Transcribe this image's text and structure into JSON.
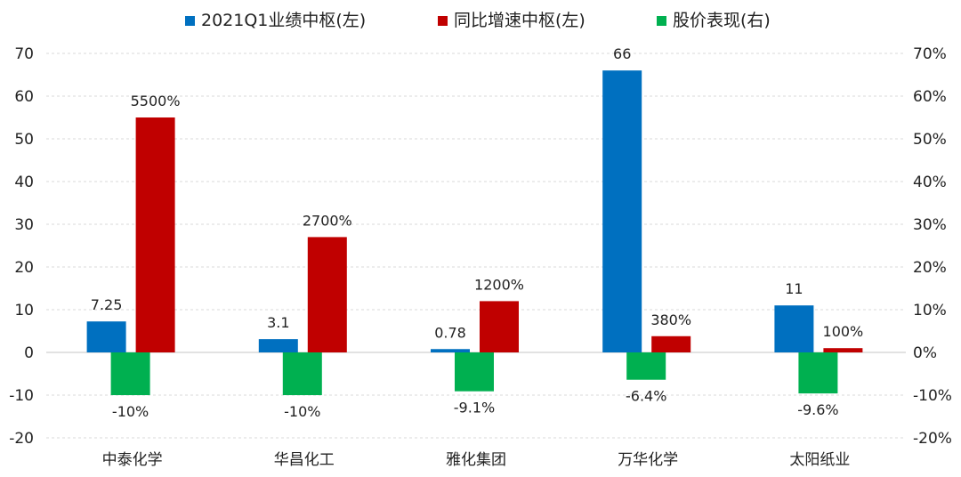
{
  "chart_data": {
    "type": "bar",
    "categories": [
      "中泰化学",
      "华昌化工",
      "雅化集团",
      "万华化学",
      "太阳纸业"
    ],
    "series": [
      {
        "name": "2021Q1业绩中枢(左)",
        "axis": "left",
        "color": "#0070C0",
        "values": [
          7.25,
          3.1,
          0.78,
          66,
          11
        ],
        "labels": [
          "7.25",
          "3.1",
          "0.78",
          "66",
          "11"
        ]
      },
      {
        "name": "同比增速中枢(左)",
        "axis": "left",
        "color": "#C00000",
        "values": [
          55,
          27,
          12,
          3.8,
          1
        ],
        "labels": [
          "5500%",
          "2700%",
          "1200%",
          "380%",
          "100%"
        ]
      },
      {
        "name": "股价表现(右)",
        "axis": "right",
        "color": "#00B050",
        "values": [
          -0.1,
          -0.1,
          -0.091,
          -0.064,
          -0.096
        ],
        "labels": [
          "-10%",
          "-10%",
          "-9.1%",
          "-6.4%",
          "-9.6%"
        ]
      }
    ],
    "y_left": {
      "ylim": [
        -20,
        70
      ],
      "ticks": [
        "70",
        "60",
        "50",
        "40",
        "30",
        "20",
        "10",
        "0",
        "-10",
        "-20"
      ]
    },
    "y_right": {
      "ylim": [
        -0.2,
        0.7
      ],
      "ticks": [
        "70%",
        "60%",
        "50%",
        "40%",
        "30%",
        "20%",
        "10%",
        "0%",
        "-10%",
        "-20%"
      ]
    },
    "grid": true,
    "legend_position": "top"
  }
}
